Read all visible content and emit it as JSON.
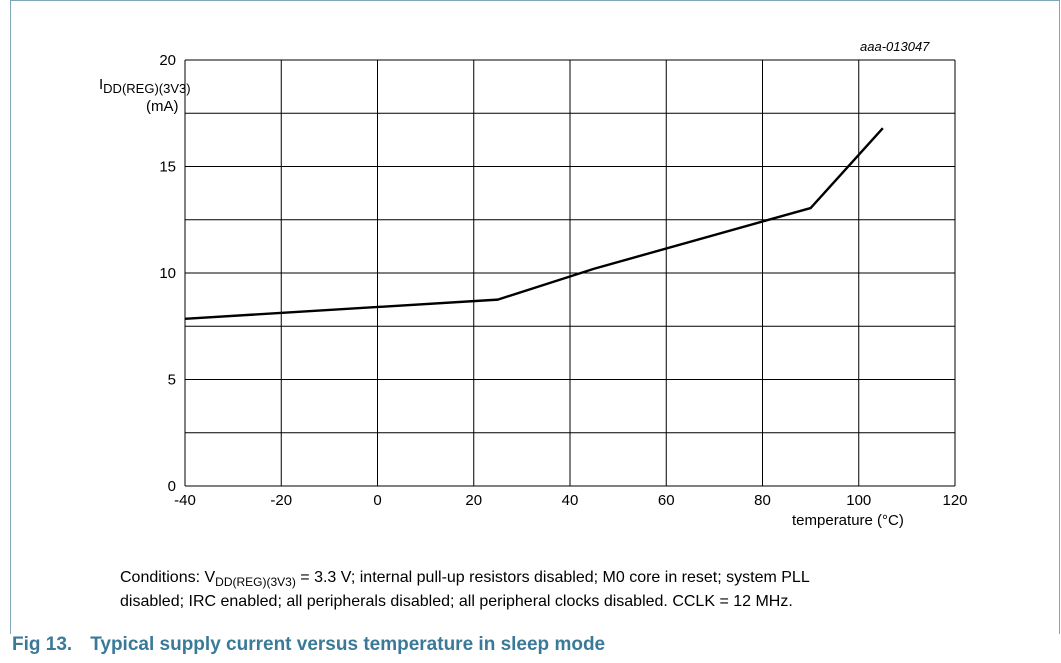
{
  "figure": {
    "ref_code": "aaa-013047",
    "caption_number": "Fig 13.",
    "caption_title": "Typical supply current versus temperature in sleep mode",
    "conditions": {
      "prefix": "Conditions: V",
      "sub": "DD(REG)(3V3)",
      "line1_rest": " = 3.3 V; internal pull-up resistors disabled; M0 core in reset; system PLL",
      "line2": "disabled; IRC enabled; all peripherals disabled; all peripheral clocks disabled. CCLK = 12 MHz."
    }
  },
  "chart_data": {
    "type": "line",
    "ylabel_main": "I",
    "ylabel_sub": "DD(REG)(3V3)",
    "ylabel_unit": "(mA)",
    "xlabel": "temperature (°C)",
    "xlim": [
      -40,
      120
    ],
    "ylim": [
      0,
      20
    ],
    "xticks": [
      -40,
      -20,
      0,
      20,
      40,
      60,
      80,
      100,
      120
    ],
    "yticks": [
      0,
      5,
      10,
      15,
      20
    ],
    "grid": true,
    "series": [
      {
        "x": [
          -40,
          25,
          45,
          90,
          105
        ],
        "y": [
          7.85,
          8.75,
          10.2,
          13.05,
          16.8
        ]
      }
    ]
  }
}
